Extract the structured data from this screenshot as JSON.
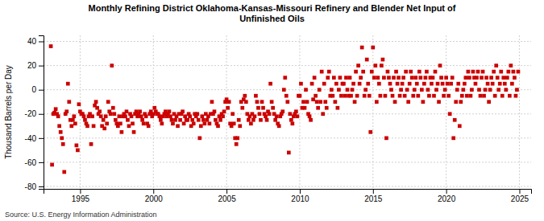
{
  "chart_data": {
    "type": "scatter",
    "title": "Monthly Refining District Oklahoma-Kansas-Missouri Refinery and Blender Net Input of\nUnfinished Oils",
    "ylabel": "Thousand Barrels per Day",
    "annotations": [
      "Source: U.S. Energy Information Administration"
    ],
    "xlim": [
      1992.5,
      2025.8
    ],
    "ylim": [
      -82,
      45
    ],
    "xticks": [
      1995,
      2000,
      2005,
      2010,
      2015,
      2020,
      2025
    ],
    "yticks": [
      -80,
      -60,
      -40,
      -20,
      0,
      20,
      40
    ],
    "grid": true,
    "color": "#CC0000",
    "marker": "square",
    "x": [
      1993.0,
      1993.083,
      1993.167,
      1993.25,
      1993.333,
      1993.417,
      1993.5,
      1993.583,
      1993.667,
      1993.75,
      1993.833,
      1993.917,
      1994.0,
      1994.083,
      1994.167,
      1994.25,
      1994.333,
      1994.417,
      1994.5,
      1994.583,
      1994.667,
      1994.75,
      1994.833,
      1994.917,
      1995.0,
      1995.083,
      1995.167,
      1995.25,
      1995.333,
      1995.417,
      1995.5,
      1995.583,
      1995.667,
      1995.75,
      1995.833,
      1995.917,
      1996.0,
      1996.083,
      1996.167,
      1996.25,
      1996.333,
      1996.417,
      1996.5,
      1996.583,
      1996.667,
      1996.75,
      1996.833,
      1996.917,
      1997.0,
      1997.083,
      1997.167,
      1997.25,
      1997.333,
      1997.417,
      1997.5,
      1997.583,
      1997.667,
      1997.75,
      1997.833,
      1997.917,
      1998.0,
      1998.083,
      1998.167,
      1998.25,
      1998.333,
      1998.417,
      1998.5,
      1998.583,
      1998.667,
      1998.75,
      1998.833,
      1998.917,
      1999.0,
      1999.083,
      1999.167,
      1999.25,
      1999.333,
      1999.417,
      1999.5,
      1999.583,
      1999.667,
      1999.75,
      1999.833,
      1999.917,
      2000.0,
      2000.083,
      2000.167,
      2000.25,
      2000.333,
      2000.417,
      2000.5,
      2000.583,
      2000.667,
      2000.75,
      2000.833,
      2000.917,
      2001.0,
      2001.083,
      2001.167,
      2001.25,
      2001.333,
      2001.417,
      2001.5,
      2001.583,
      2001.667,
      2001.75,
      2001.833,
      2001.917,
      2002.0,
      2002.083,
      2002.167,
      2002.25,
      2002.333,
      2002.417,
      2002.5,
      2002.583,
      2002.667,
      2002.75,
      2002.833,
      2002.917,
      2003.0,
      2003.083,
      2003.167,
      2003.25,
      2003.333,
      2003.417,
      2003.5,
      2003.583,
      2003.667,
      2003.75,
      2003.833,
      2003.917,
      2004.0,
      2004.083,
      2004.167,
      2004.25,
      2004.333,
      2004.417,
      2004.5,
      2004.583,
      2004.667,
      2004.75,
      2004.833,
      2004.917,
      2005.0,
      2005.083,
      2005.167,
      2005.25,
      2005.333,
      2005.417,
      2005.5,
      2005.583,
      2005.667,
      2005.75,
      2005.833,
      2005.917,
      2006.0,
      2006.083,
      2006.167,
      2006.25,
      2006.333,
      2006.417,
      2006.5,
      2006.583,
      2006.667,
      2006.75,
      2006.833,
      2006.917,
      2007.0,
      2007.083,
      2007.167,
      2007.25,
      2007.333,
      2007.417,
      2007.5,
      2007.583,
      2007.667,
      2007.75,
      2007.833,
      2007.917,
      2008.0,
      2008.083,
      2008.167,
      2008.25,
      2008.333,
      2008.417,
      2008.5,
      2008.583,
      2008.667,
      2008.75,
      2008.833,
      2008.917,
      2009.0,
      2009.083,
      2009.167,
      2009.25,
      2009.333,
      2009.417,
      2009.5,
      2009.583,
      2009.667,
      2009.75,
      2009.833,
      2009.917,
      2010.0,
      2010.083,
      2010.167,
      2010.25,
      2010.333,
      2010.417,
      2010.5,
      2010.583,
      2010.667,
      2010.75,
      2010.833,
      2010.917,
      2011.0,
      2011.083,
      2011.167,
      2011.25,
      2011.333,
      2011.417,
      2011.5,
      2011.583,
      2011.667,
      2011.75,
      2011.833,
      2011.917,
      2012.0,
      2012.083,
      2012.167,
      2012.25,
      2012.333,
      2012.417,
      2012.5,
      2012.583,
      2012.667,
      2012.75,
      2012.833,
      2012.917,
      2013.0,
      2013.083,
      2013.167,
      2013.25,
      2013.333,
      2013.417,
      2013.5,
      2013.583,
      2013.667,
      2013.75,
      2013.833,
      2013.917,
      2014.0,
      2014.083,
      2014.167,
      2014.25,
      2014.333,
      2014.417,
      2014.5,
      2014.583,
      2014.667,
      2014.75,
      2014.833,
      2014.917,
      2015.0,
      2015.083,
      2015.167,
      2015.25,
      2015.333,
      2015.417,
      2015.5,
      2015.583,
      2015.667,
      2015.75,
      2015.833,
      2015.917,
      2016.0,
      2016.083,
      2016.167,
      2016.25,
      2016.333,
      2016.417,
      2016.5,
      2016.583,
      2016.667,
      2016.75,
      2016.833,
      2016.917,
      2017.0,
      2017.083,
      2017.167,
      2017.25,
      2017.333,
      2017.417,
      2017.5,
      2017.583,
      2017.667,
      2017.75,
      2017.833,
      2017.917,
      2018.0,
      2018.083,
      2018.167,
      2018.25,
      2018.333,
      2018.417,
      2018.5,
      2018.583,
      2018.667,
      2018.75,
      2018.833,
      2018.917,
      2019.0,
      2019.083,
      2019.167,
      2019.25,
      2019.333,
      2019.417,
      2019.5,
      2019.583,
      2019.667,
      2019.75,
      2019.833,
      2019.917,
      2020.0,
      2020.083,
      2020.167,
      2020.25,
      2020.333,
      2020.417,
      2020.5,
      2020.583,
      2020.667,
      2020.75,
      2020.833,
      2020.917,
      2021.0,
      2021.083,
      2021.167,
      2021.25,
      2021.333,
      2021.417,
      2021.5,
      2021.583,
      2021.667,
      2021.75,
      2021.833,
      2021.917,
      2022.0,
      2022.083,
      2022.167,
      2022.25,
      2022.333,
      2022.417,
      2022.5,
      2022.583,
      2022.667,
      2022.75,
      2022.833,
      2022.917,
      2023.0,
      2023.083,
      2023.167,
      2023.25,
      2023.333,
      2023.417,
      2023.5,
      2023.583,
      2023.667,
      2023.75,
      2023.833,
      2023.917,
      2024.0,
      2024.083,
      2024.167,
      2024.25,
      2024.333,
      2024.417,
      2024.5,
      2024.583,
      2024.667,
      2024.75,
      2024.833,
      2024.917
    ],
    "values": [
      36,
      -62,
      -20,
      -19,
      -16,
      -20,
      -22,
      -30,
      -35,
      -40,
      -45,
      -68,
      -20,
      -18,
      5,
      -10,
      -25,
      -30,
      -25,
      -22,
      -28,
      -46,
      -50,
      -12,
      -18,
      -20,
      -20,
      -22,
      -25,
      -28,
      -30,
      -22,
      -20,
      -45,
      -22,
      -30,
      -13,
      -10,
      -15,
      -20,
      -18,
      -22,
      -30,
      -25,
      -32,
      -22,
      -28,
      -10,
      -18,
      -20,
      20,
      -15,
      -20,
      -25,
      -28,
      -30,
      -22,
      -28,
      -35,
      -22,
      -20,
      -22,
      -18,
      -25,
      -30,
      -20,
      -22,
      -28,
      -35,
      -20,
      -18,
      -22,
      -20,
      -18,
      -22,
      -25,
      -28,
      -20,
      -22,
      -28,
      -30,
      -20,
      -18,
      -22,
      -20,
      -15,
      -18,
      -20,
      -20,
      -22,
      -25,
      -28,
      -22,
      -20,
      -18,
      -22,
      -20,
      -18,
      -22,
      -25,
      -28,
      -20,
      -25,
      -22,
      -30,
      -20,
      -25,
      -20,
      -18,
      -28,
      -22,
      -25,
      -25,
      -20,
      -22,
      -30,
      -25,
      -28,
      -20,
      -22,
      -20,
      -25,
      -40,
      -30,
      -22,
      -25,
      -28,
      -20,
      -25,
      -22,
      -28,
      -20,
      -10,
      -20,
      -18,
      -25,
      -28,
      -30,
      -22,
      -25,
      -20,
      -22,
      -18,
      -10,
      -8,
      -15,
      -10,
      -28,
      -30,
      -20,
      -28,
      -40,
      -45,
      -40,
      -25,
      -30,
      -10,
      -15,
      -8,
      -5,
      -10,
      -20,
      -25,
      -22,
      -28,
      -20,
      -25,
      -22,
      -5,
      -10,
      -15,
      -20,
      -25,
      -10,
      -15,
      -20,
      -22,
      -25,
      -18,
      -20,
      5,
      -10,
      -15,
      -20,
      -25,
      -22,
      -28,
      -30,
      -22,
      -20,
      -18,
      0,
      10,
      -5,
      -10,
      -52,
      -20,
      -25,
      -28,
      -22,
      -20,
      -18,
      -22,
      -5,
      -5,
      5,
      -15,
      -10,
      -15,
      0,
      -10,
      -20,
      -22,
      -25,
      5,
      -8,
      10,
      -5,
      -10,
      -15,
      0,
      -10,
      15,
      -20,
      5,
      -10,
      -15,
      10,
      15,
      -5,
      0,
      -5,
      10,
      -10,
      5,
      -15,
      0,
      10,
      -5,
      5,
      5,
      -5,
      10,
      0,
      -5,
      10,
      -5,
      0,
      5,
      -10,
      15,
      -5,
      20,
      5,
      10,
      35,
      15,
      -5,
      0,
      25,
      5,
      -5,
      -35,
      15,
      35,
      10,
      20,
      -10,
      10,
      5,
      -5,
      20,
      25,
      10,
      -5,
      -40,
      15,
      10,
      5,
      0,
      -5,
      10,
      -10,
      15,
      5,
      10,
      -5,
      0,
      5,
      10,
      -5,
      15,
      0,
      -10,
      5,
      15,
      10,
      -5,
      0,
      10,
      5,
      -5,
      15,
      10,
      0,
      -10,
      5,
      10,
      15,
      0,
      -5,
      10,
      5,
      10,
      -5,
      15,
      0,
      5,
      -10,
      20,
      10,
      5,
      -5,
      0,
      10,
      5,
      -5,
      -20,
      5,
      10,
      -40,
      -25,
      -10,
      0,
      5,
      -30,
      -10,
      -5,
      0,
      5,
      10,
      -5,
      15,
      10,
      -5,
      0,
      15,
      10,
      5,
      10,
      15,
      0,
      -5,
      10,
      15,
      -5,
      0,
      10,
      5,
      -10,
      0,
      10,
      5,
      15,
      -5,
      20,
      10,
      0,
      5,
      15,
      -5,
      10,
      5,
      0,
      10,
      15,
      -5,
      20,
      5,
      15,
      10,
      -5,
      0,
      15
    ]
  }
}
